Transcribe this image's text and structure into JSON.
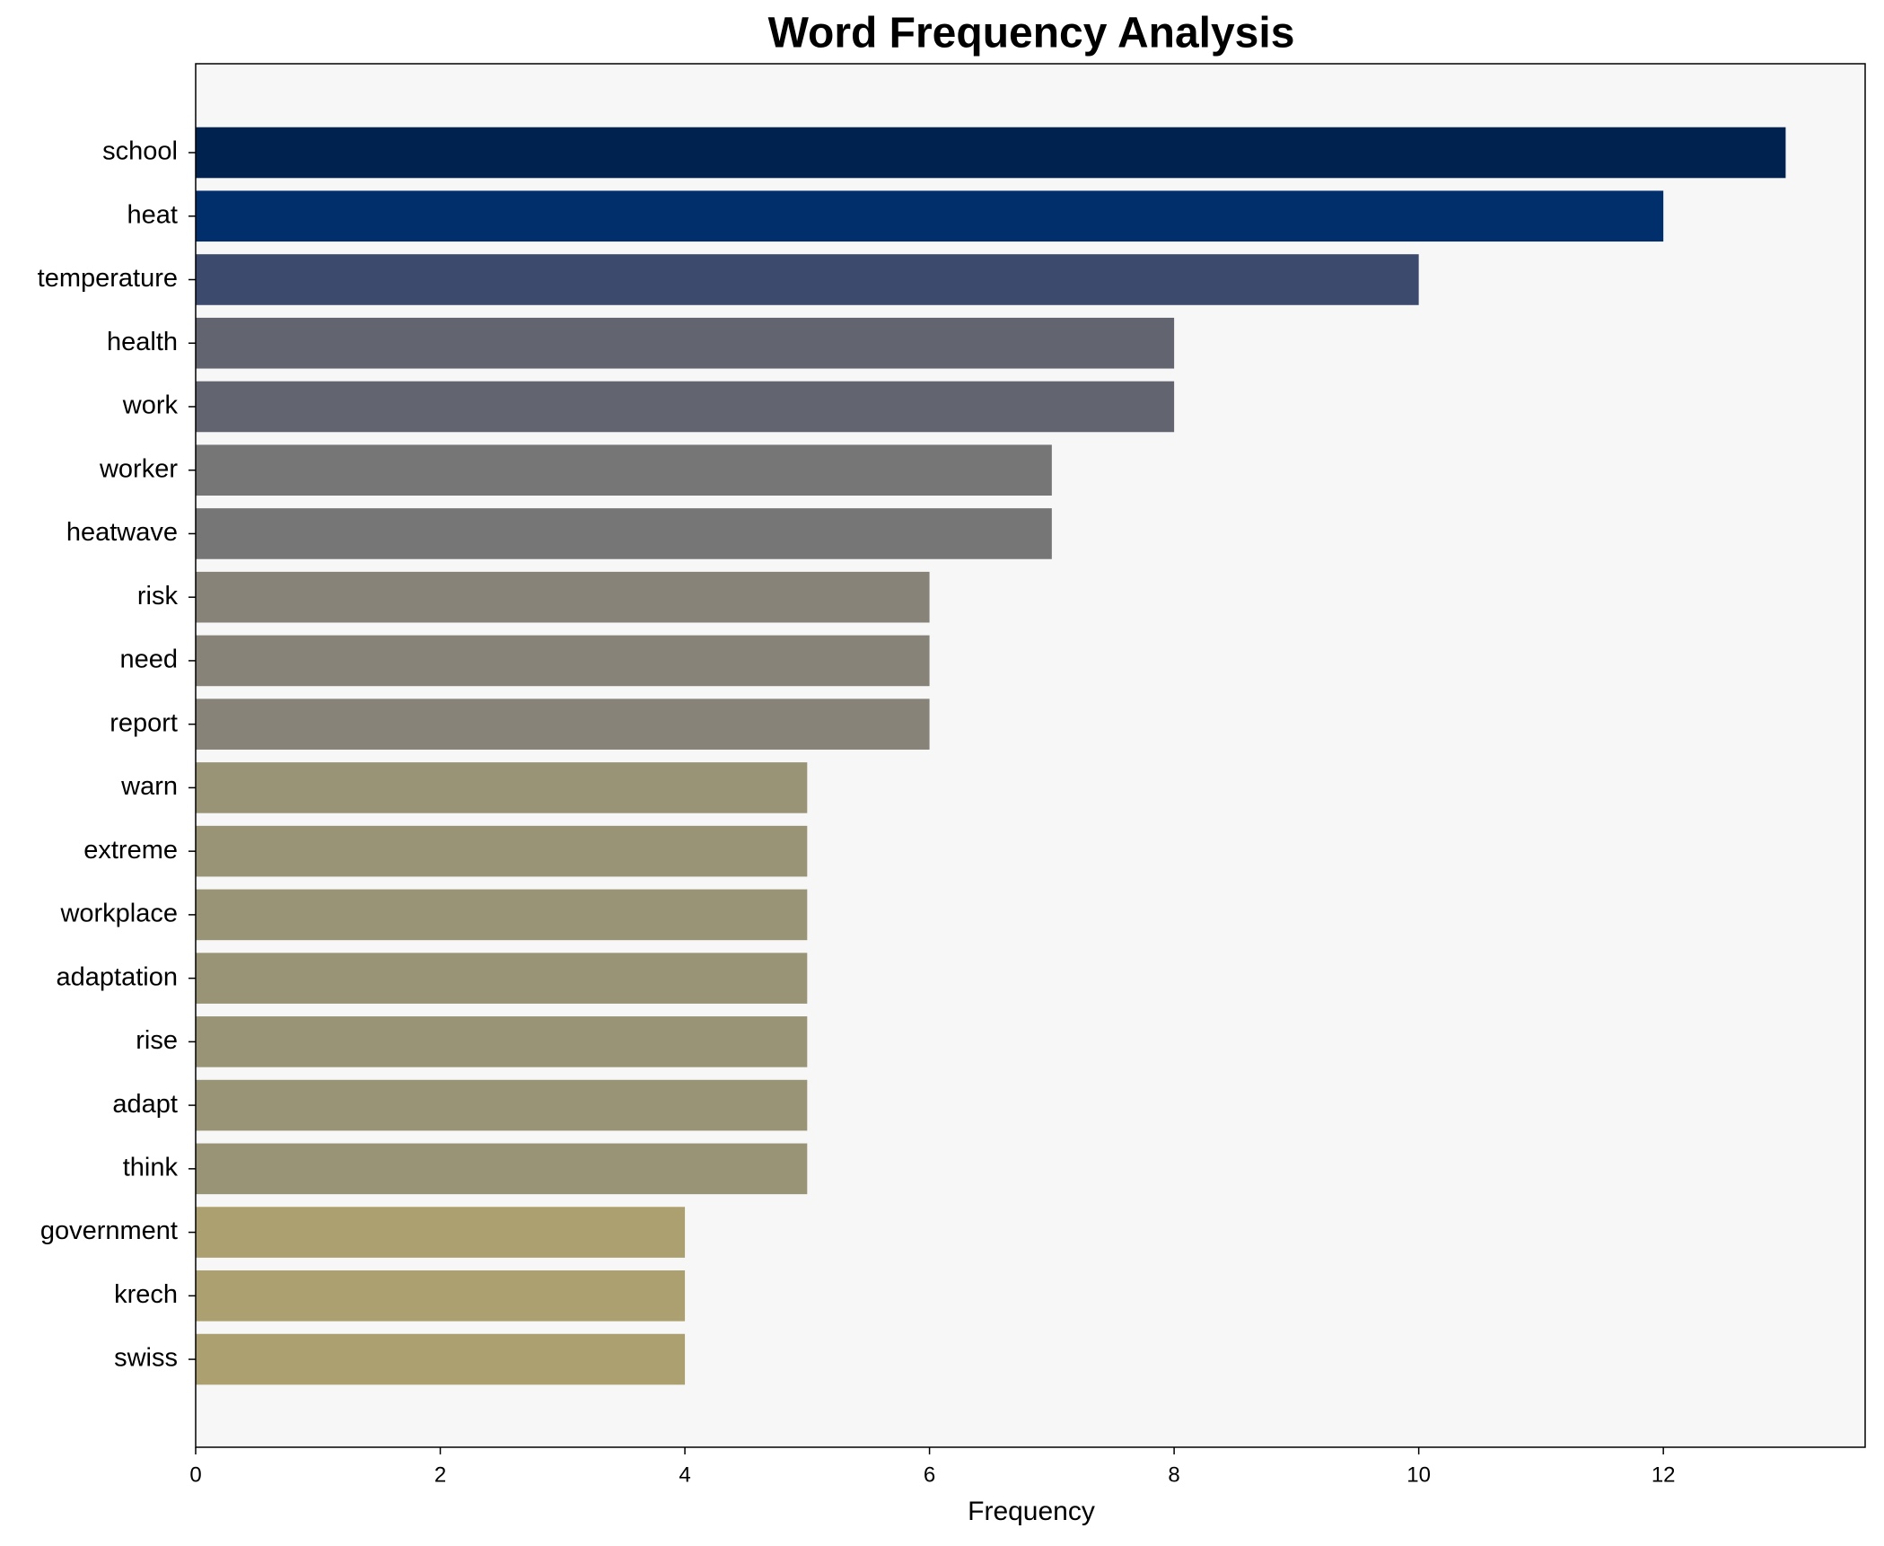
{
  "chart_data": {
    "type": "barh",
    "title": "Word Frequency Analysis",
    "x_label": "Frequency",
    "categories": [
      "school",
      "heat",
      "temperature",
      "health",
      "work",
      "worker",
      "heatwave",
      "risk",
      "need",
      "report",
      "warn",
      "extreme",
      "workplace",
      "adaptation",
      "rise",
      "adapt",
      "think",
      "government",
      "krech",
      "swiss"
    ],
    "values": [
      13,
      12,
      10,
      8,
      8,
      7,
      7,
      6,
      6,
      6,
      5,
      5,
      5,
      5,
      5,
      5,
      5,
      4,
      4,
      4
    ],
    "colors": [
      "#00224e",
      "#002f6c",
      "#3c4a6d",
      "#62646f",
      "#62646f",
      "#767676",
      "#767676",
      "#878379",
      "#878379",
      "#878379",
      "#9a9476",
      "#9a9476",
      "#9a9476",
      "#9a9476",
      "#9a9476",
      "#9a9476",
      "#9a9476",
      "#ac9f70",
      "#ac9f70",
      "#ac9f70"
    ],
    "xlim": [
      0,
      13.65
    ],
    "xticks": [
      0,
      2,
      4,
      6,
      8,
      10,
      12
    ]
  }
}
